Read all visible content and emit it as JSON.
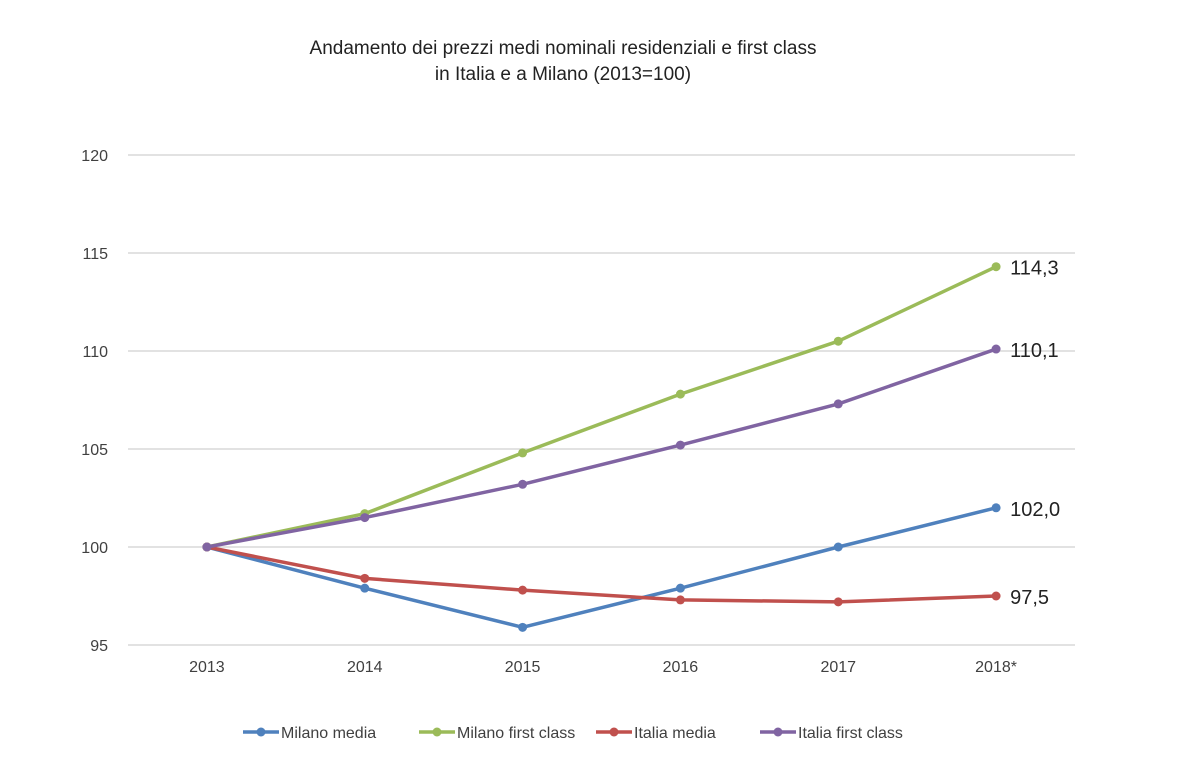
{
  "chart_data": {
    "type": "line",
    "title": [
      "Andamento dei prezzi medi nominali residenziali e first class",
      "in Italia e a  Milano (2013=100)"
    ],
    "categories": [
      "2013",
      "2014",
      "2015",
      "2016",
      "2017",
      "2018*"
    ],
    "ylim": [
      95,
      120
    ],
    "yticks": [
      95,
      100,
      105,
      110,
      115,
      120
    ],
    "grid": true,
    "legend": "bottom",
    "series": [
      {
        "name": "Milano media",
        "color": "#4f81bd",
        "values": [
          100,
          97.9,
          95.9,
          97.9,
          100.0,
          102.0
        ],
        "end_label": "102,0"
      },
      {
        "name": "Milano first class",
        "color": "#9bbb59",
        "values": [
          100,
          101.7,
          104.8,
          107.8,
          110.5,
          114.3
        ],
        "end_label": "114,3"
      },
      {
        "name": "Italia media",
        "color": "#c0504d",
        "values": [
          100,
          98.4,
          97.8,
          97.3,
          97.2,
          97.5
        ],
        "end_label": "97,5"
      },
      {
        "name": "Italia first class",
        "color": "#8064a2",
        "values": [
          100,
          101.5,
          103.2,
          105.2,
          107.3,
          110.1
        ],
        "end_label": "110,1"
      }
    ]
  }
}
